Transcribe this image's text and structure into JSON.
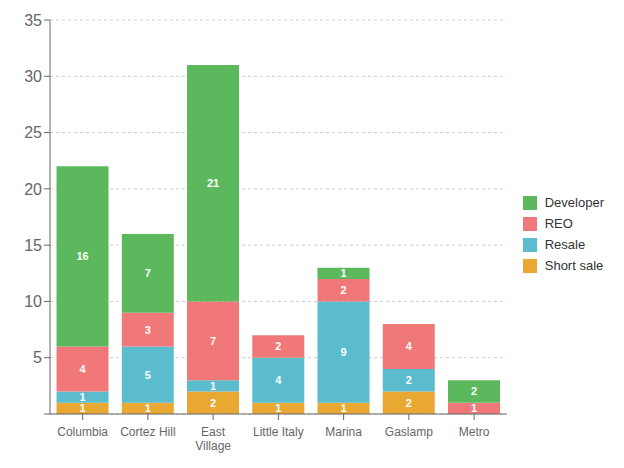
{
  "chart_data": {
    "type": "bar",
    "stacked": true,
    "data_labels": true,
    "grid": true,
    "legend": "right",
    "categories": [
      "Columbia",
      "Cortez Hill",
      "East\nVillage",
      "Little Italy",
      "Marina",
      "Gaslamp",
      "Metro"
    ],
    "series": [
      {
        "name": "Short sale",
        "color": "#e8a832",
        "values": [
          1,
          1,
          2,
          1,
          1,
          2,
          0
        ]
      },
      {
        "name": "Resale",
        "color": "#5bbcce",
        "values": [
          1,
          5,
          1,
          4,
          9,
          2,
          0
        ]
      },
      {
        "name": "REO",
        "color": "#f07878",
        "values": [
          4,
          3,
          7,
          2,
          2,
          4,
          1
        ]
      },
      {
        "name": "Developer",
        "color": "#5cb85c",
        "values": [
          16,
          7,
          21,
          0,
          1,
          0,
          2
        ]
      }
    ],
    "ylim": [
      0,
      35
    ],
    "yticks": [
      {
        "value": 0,
        "label": ""
      },
      5,
      10,
      15,
      20,
      25,
      30,
      35
    ]
  }
}
